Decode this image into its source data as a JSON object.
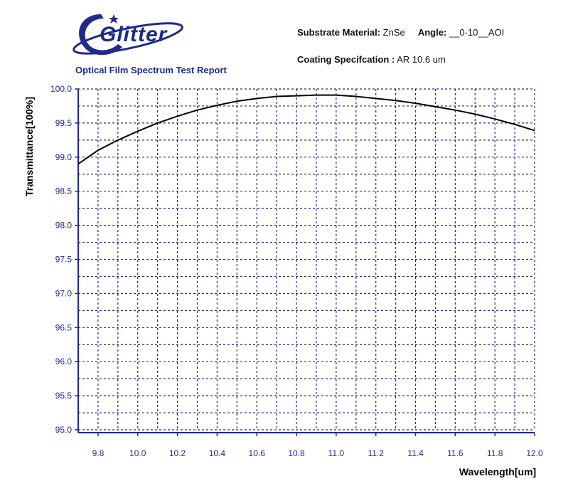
{
  "header": {
    "logo_text": "Glitter",
    "report_title": "Optical Film Spectrum Test Report",
    "substrate_label": "Substrate Material:",
    "substrate_value": "ZnSe",
    "angle_label": "Angle:",
    "angle_value": "__0-10__AOI",
    "coating_label": "Coating Specifcation :",
    "coating_value": "AR 10.6 um"
  },
  "colors": {
    "brand": "#1f2a8c",
    "grid": "#1f2a8c",
    "curve": "#000000"
  },
  "chart_data": {
    "type": "line",
    "xlabel": "Wavelength[um]",
    "ylabel": "Transmittance[100%]",
    "xlim": [
      9.7,
      12.0
    ],
    "ylim": [
      95.0,
      100.0
    ],
    "x_ticks": [
      "9.8",
      "10.0",
      "10.2",
      "10.4",
      "10.6",
      "10.8",
      "11.0",
      "11.2",
      "11.4",
      "11.6",
      "11.8",
      "12.0"
    ],
    "y_ticks": [
      "95.0",
      "95.5",
      "96.0",
      "96.5",
      "97.0",
      "97.5",
      "98.0",
      "98.5",
      "99.0",
      "99.5",
      "100.0"
    ],
    "grid": true,
    "series": [
      {
        "x": [
          9.7,
          9.8,
          9.9,
          10.0,
          10.1,
          10.2,
          10.3,
          10.4,
          10.5,
          10.6,
          10.7,
          10.8,
          10.9,
          11.0,
          11.1,
          11.2,
          11.3,
          11.4,
          11.5,
          11.6,
          11.7,
          11.8,
          11.9,
          12.0
        ],
        "y": [
          98.9,
          99.1,
          99.25,
          99.38,
          99.5,
          99.6,
          99.69,
          99.76,
          99.82,
          99.86,
          99.89,
          99.9,
          99.91,
          99.91,
          99.89,
          99.86,
          99.83,
          99.79,
          99.74,
          99.69,
          99.63,
          99.56,
          99.48,
          99.39
        ]
      }
    ]
  }
}
